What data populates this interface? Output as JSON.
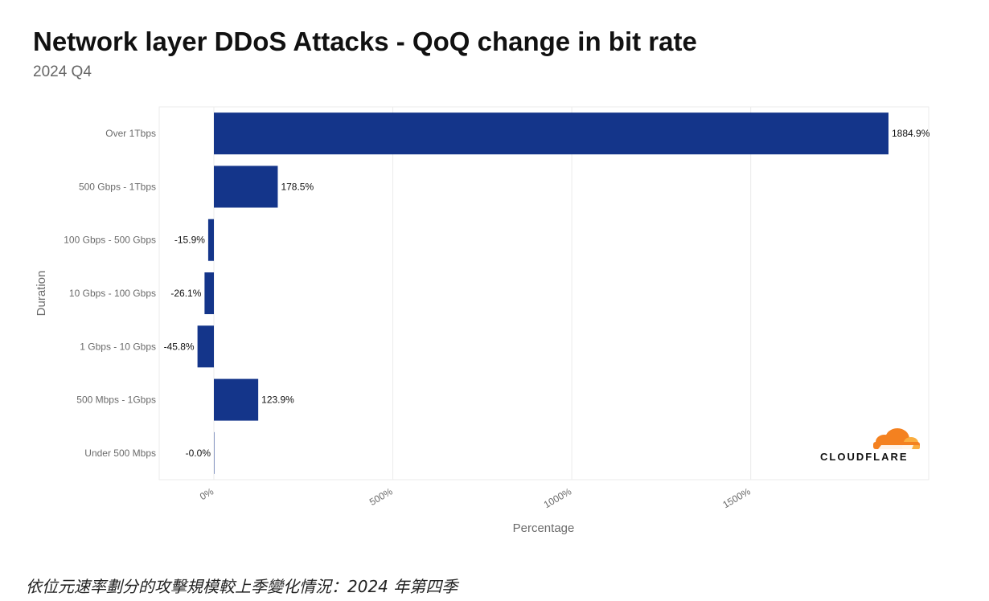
{
  "header": {
    "title": "Network layer DDoS Attacks - QoQ change in bit rate",
    "subtitle": "2024 Q4"
  },
  "chart_data": {
    "type": "bar",
    "orientation": "horizontal",
    "categories": [
      "Over 1Tbps",
      "500 Gbps - 1Tbps",
      "100 Gbps - 500 Gbps",
      "10 Gbps - 100 Gbps",
      "1 Gbps - 10 Gbps",
      "500 Mbps - 1Gbps",
      "Under 500 Mbps"
    ],
    "values": [
      1884.9,
      178.5,
      -15.9,
      -26.1,
      -45.8,
      123.9,
      -0.0
    ],
    "data_labels": [
      "1884.9%",
      "178.5%",
      "-15.9%",
      "-26.1%",
      "-45.8%",
      "123.9%",
      "-0.0%"
    ],
    "xlabel": "Percentage",
    "ylabel": "Duration",
    "xlim": [
      -155,
      1985
    ],
    "xticks": [
      0,
      500,
      1000,
      1500
    ],
    "xtick_labels": [
      "0%",
      "500%",
      "1000%",
      "1500%"
    ],
    "bar_color": "#14358a",
    "grid": true,
    "legend": "none"
  },
  "logo": {
    "text": "CLOUDFLARE"
  },
  "caption": "依位元速率劃分的攻擊規模較上季變化情況：2024 年第四季"
}
